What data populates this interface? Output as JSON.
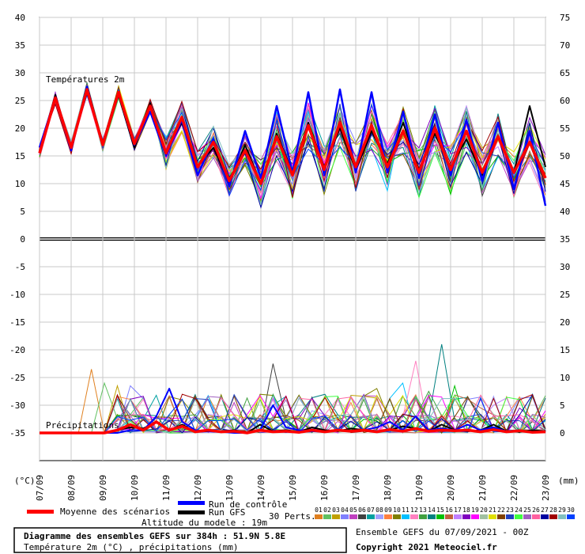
{
  "chart_data": {
    "type": "line",
    "title": "Diagramme des ensembles GEFS sur 384h : 51.9N 5.8E",
    "subtitle": "Température 2m (°C) , précipitations (mm)",
    "run_info": "Ensemble GEFS du 07/09/2021 - 00Z",
    "copyright": "Copyright 2021 Meteociel.fr",
    "altitude": "Altitude du modele : 19m",
    "panel_temp_label": "Températures 2m",
    "panel_precip_label": "Précipitations",
    "left_axis_unit": "(°C)",
    "right_axis_unit": "(mm)",
    "left_ticks": [
      "40",
      "35",
      "30",
      "25",
      "20",
      "15",
      "10",
      "5",
      "0",
      "-5",
      "-10",
      "-15",
      "-20",
      "-25",
      "-30",
      "-35"
    ],
    "right_ticks": [
      "75",
      "70",
      "65",
      "60",
      "55",
      "50",
      "45",
      "40",
      "35",
      "30",
      "25",
      "20",
      "15",
      "10",
      "5",
      "0"
    ],
    "x_labels": [
      "07/09",
      "08/09",
      "09/09",
      "10/09",
      "11/09",
      "12/09",
      "13/09",
      "14/09",
      "15/09",
      "16/09",
      "17/09",
      "18/09",
      "19/09",
      "20/09",
      "21/09",
      "22/09",
      "23/09"
    ],
    "legend": {
      "mean": "Moyenne des scénarios",
      "control": "Run de contrôle",
      "gfs": "Run GFS",
      "perts": "30 Perts.",
      "member_labels": [
        "01",
        "02",
        "03",
        "04",
        "05",
        "06",
        "07",
        "08",
        "09",
        "10",
        "11",
        "12",
        "13",
        "14",
        "15",
        "16",
        "17",
        "18",
        "19",
        "20",
        "21",
        "22",
        "23",
        "24",
        "25",
        "26",
        "27",
        "28",
        "29",
        "30"
      ]
    },
    "colors": {
      "mean": "#ff0000",
      "control": "#0000ff",
      "gfs": "#000000",
      "grid": "#c8c8c8",
      "members": [
        "#e08020",
        "#60c060",
        "#c0a000",
        "#8080ff",
        "#c040c0",
        "#404040",
        "#00a0a0",
        "#a0a0ff",
        "#ff8040",
        "#808000",
        "#00c0ff",
        "#ff80c0",
        "#40a040",
        "#008080",
        "#00c000",
        "#c06040",
        "#c080ff",
        "#8000c0",
        "#ff00ff",
        "#a0c0a0",
        "#e0e000",
        "#804000",
        "#2040c0",
        "#40ff40",
        "#a060c0",
        "#ff60a0",
        "#0000a0",
        "#a00000",
        "#80c0c0",
        "#0040ff"
      ]
    },
    "temperature_mean": [
      15.5,
      25.5,
      16.5,
      27.0,
      17.0,
      26.5,
      17.2,
      24.0,
      15.5,
      22.0,
      13.0,
      17.5,
      10.5,
      16.0,
      10.0,
      18.5,
      11.5,
      20.5,
      12.5,
      21.0,
      13.0,
      20.5,
      13.0,
      19.5,
      12.0,
      20.0,
      12.5,
      19.5,
      12.0,
      18.5,
      12.0,
      17.5,
      11.0
    ],
    "temperature_control": [
      16.5,
      25.5,
      16.0,
      27.5,
      17.0,
      26.5,
      17.0,
      23.0,
      15.0,
      21.5,
      11.5,
      18.0,
      9.5,
      19.5,
      11.0,
      24.0,
      12.0,
      26.5,
      11.5,
      27.0,
      12.0,
      26.5,
      12.0,
      23.0,
      11.0,
      22.5,
      11.5,
      21.5,
      10.5,
      21.0,
      9.0,
      19.5,
      6.0
    ],
    "temperature_gfs": [
      16.0,
      26.0,
      16.5,
      26.5,
      17.5,
      26.0,
      16.5,
      24.5,
      15.5,
      21.0,
      13.0,
      16.5,
      10.0,
      17.0,
      10.0,
      19.0,
      12.0,
      21.0,
      13.0,
      20.0,
      12.5,
      19.5,
      13.5,
      21.0,
      12.5,
      19.0,
      13.0,
      18.0,
      11.5,
      18.5,
      12.0,
      24.0,
      13.0
    ],
    "precip_mean": [
      0,
      0,
      0,
      0,
      0,
      0,
      0.5,
      1.5,
      0.5,
      2.0,
      0.5,
      1.2,
      0.2,
      0.5,
      0.2,
      0.3,
      0,
      0.5,
      0.2,
      0.3,
      0.1,
      0.5,
      0.2,
      0.5,
      0.3,
      0.5,
      0.2,
      0.6,
      0.3,
      0.8,
      0.3,
      0.5,
      0.4,
      0.5,
      0.2,
      0.6,
      0.2,
      0.4,
      0.1,
      0.2
    ],
    "precip_control": [
      0,
      0,
      0,
      0,
      0,
      0,
      0,
      0.5,
      0.5,
      3.0,
      8.0,
      2.0,
      0.5,
      0.3,
      0.2,
      0,
      0,
      0.5,
      5.0,
      1.0,
      0.5,
      0.3,
      0.2,
      0.5,
      0.3,
      0.5,
      1.0,
      2.0,
      0.5,
      3.0,
      0.5,
      0.8,
      0.5,
      1.5,
      0.5,
      1.0,
      0.3,
      0.5,
      0.2,
      0.2
    ],
    "precip_gfs": [
      0,
      0,
      0,
      0,
      0,
      0,
      0.5,
      1.0,
      0.8,
      2.0,
      0.5,
      1.5,
      0.2,
      0.3,
      0.2,
      0.5,
      0,
      1.5,
      0.3,
      0.5,
      0.2,
      1.0,
      0.5,
      0.3,
      0.8,
      0.5,
      0.3,
      0.5,
      1.2,
      0.8,
      0.3,
      1.5,
      0.5,
      0.3,
      0.5,
      1.5,
      0.3,
      0.2,
      0.5,
      0.3
    ],
    "precip_peaks": [
      {
        "x": 6.8,
        "y": 11.5
      },
      {
        "x": 8.5,
        "y": 9.0
      },
      {
        "x": 9.5,
        "y": 8.5
      },
      {
        "x": 11.0,
        "y": 8.5
      },
      {
        "x": 25.0,
        "y": 5.5
      },
      {
        "x": 29.0,
        "y": 12.5
      },
      {
        "x": 30.0,
        "y": 5.0
      },
      {
        "x": 34.0,
        "y": 4.0
      },
      {
        "x": 39.0,
        "y": 5.5
      },
      {
        "x": 42.0,
        "y": 8.0
      },
      {
        "x": 46.0,
        "y": 9.0
      },
      {
        "x": 47.5,
        "y": 13.0
      },
      {
        "x": 49.0,
        "y": 7.5
      },
      {
        "x": 51.5,
        "y": 16.0
      },
      {
        "x": 52.5,
        "y": 8.5
      },
      {
        "x": 55.0,
        "y": 4.5
      },
      {
        "x": 58.0,
        "y": 5.0
      },
      {
        "x": 60.5,
        "y": 4.5
      },
      {
        "x": 63.5,
        "y": 4.0
      }
    ],
    "temp_ylim": [
      5,
      40
    ],
    "precip_ylim": [
      0,
      75
    ]
  }
}
